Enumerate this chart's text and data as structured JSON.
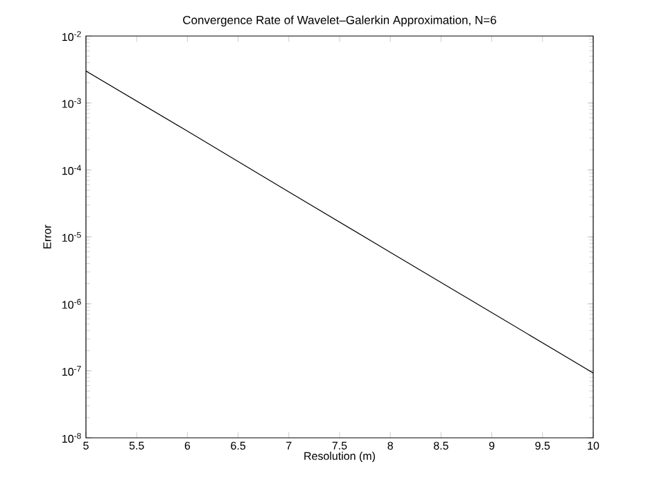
{
  "chart_data": {
    "type": "line",
    "title": "Convergence Rate of Wavelet–Galerkin Approximation, N=6",
    "xlabel": "Resolution (m)",
    "ylabel": "Error",
    "x": [
      5,
      6,
      7,
      8,
      9,
      10
    ],
    "series": [
      {
        "color": "#000000",
        "values": [
          0.003,
          0.00038,
          4.7e-05,
          5.9e-06,
          7.4e-07,
          9.3e-08
        ]
      }
    ],
    "log": "y",
    "xlim": [
      5,
      10
    ],
    "ylim": [
      1e-08,
      0.01
    ],
    "xticks": [
      5,
      5.5,
      6,
      6.5,
      7,
      7.5,
      8,
      8.5,
      9,
      9.5,
      10
    ],
    "yticks": [
      {
        "value": 1e-08,
        "label": "10$^{-8}$"
      },
      {
        "value": 1e-07,
        "label": "10$^{-7}$"
      },
      {
        "value": 1e-06,
        "label": "10$^{-6}$"
      },
      {
        "value": 1e-05,
        "label": "10$^{-5}$"
      },
      {
        "value": 0.0001,
        "label": "10$^{-4}$"
      },
      {
        "value": 0.001,
        "label": "10$^{-3}$"
      },
      {
        "value": 0.01,
        "label": "10$^{-2}$"
      }
    ],
    "grid": false,
    "marker": "none",
    "line_style": "solid"
  }
}
